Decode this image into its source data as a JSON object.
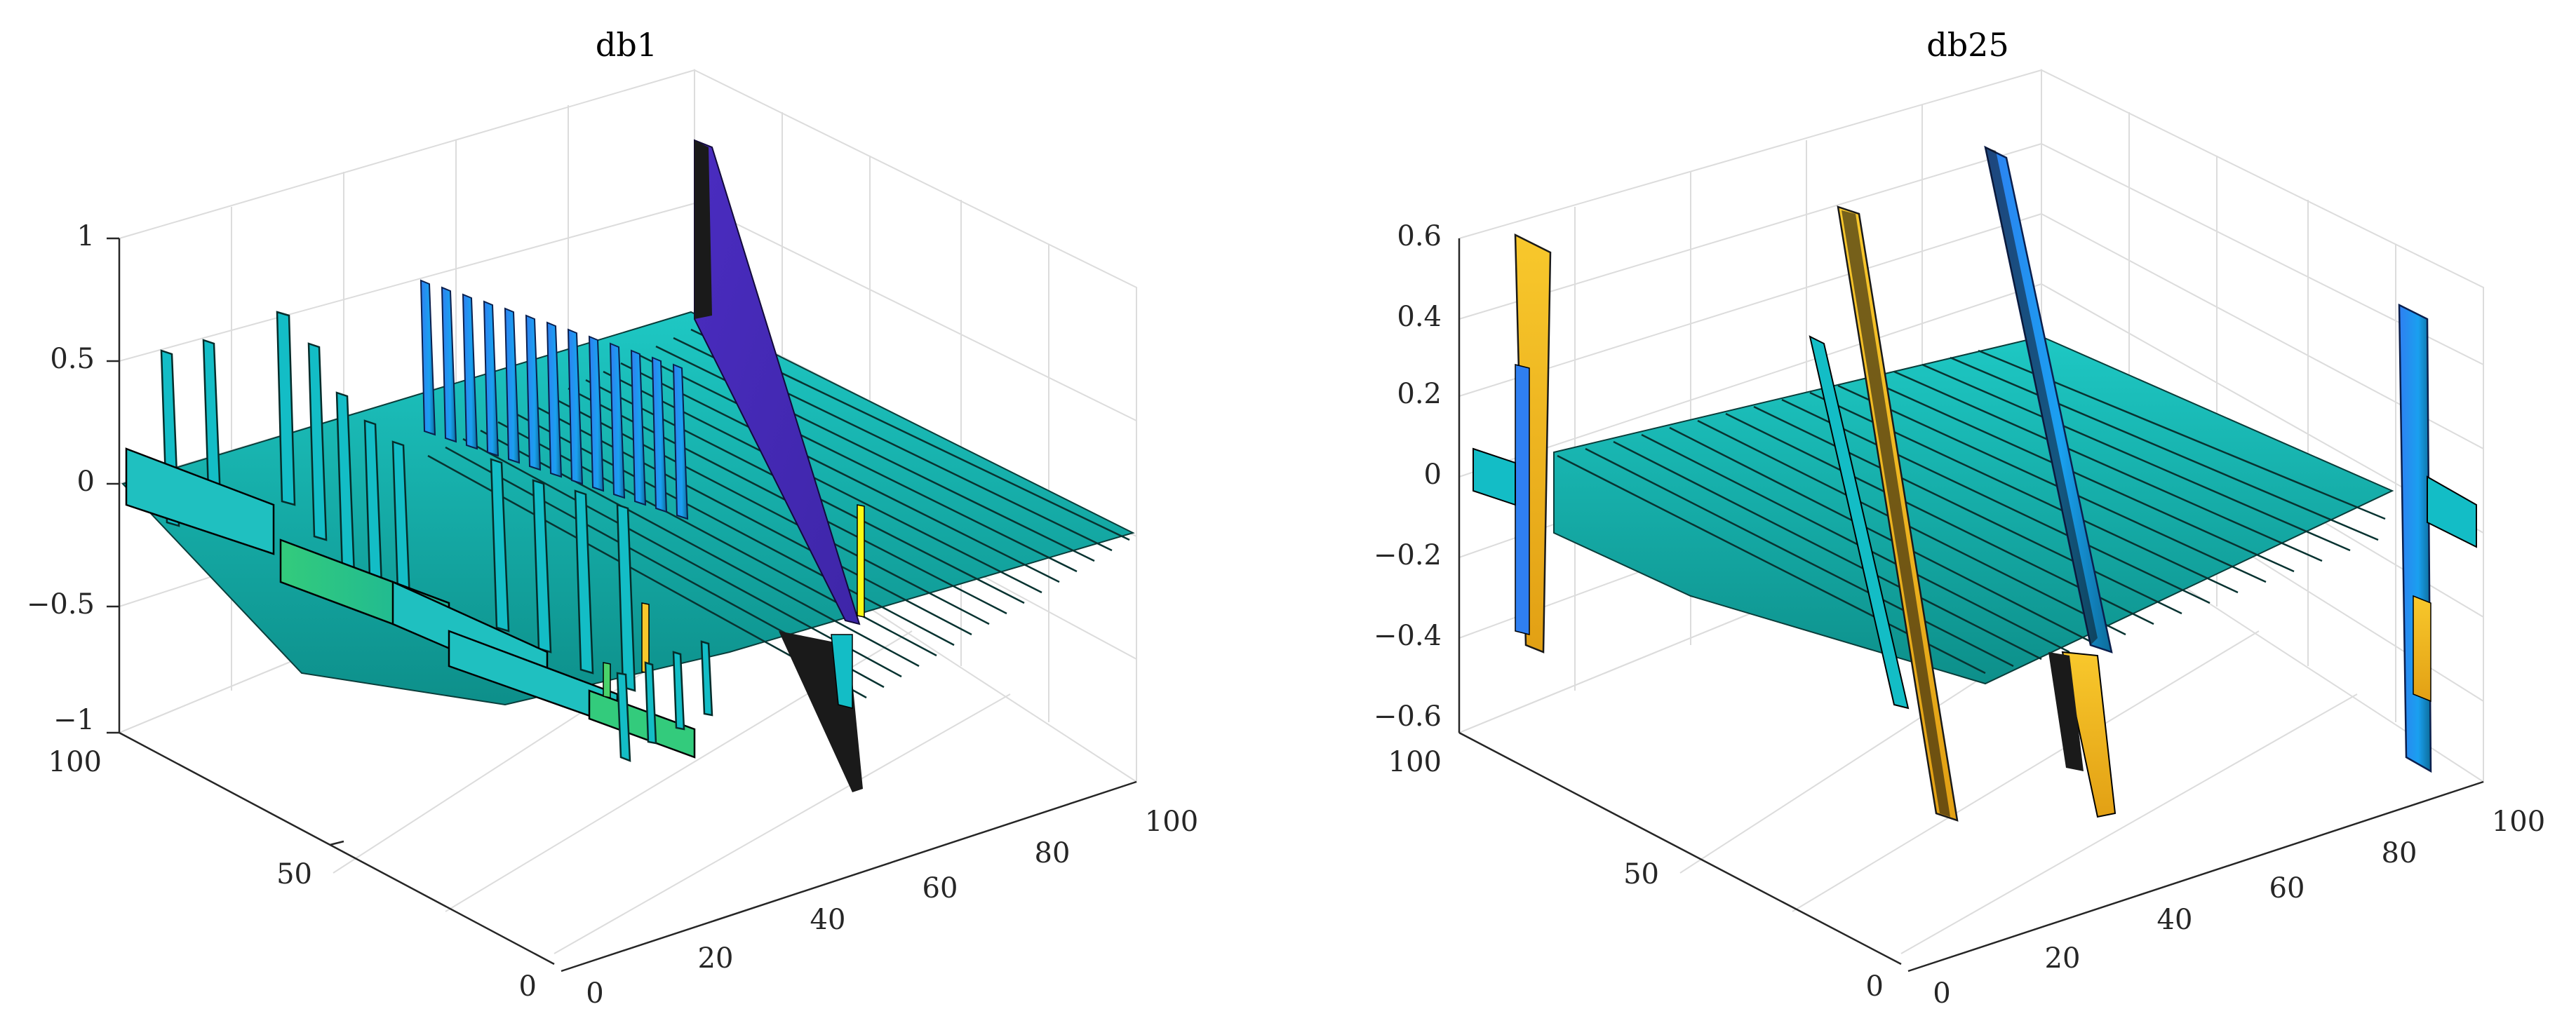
{
  "chart_data": [
    {
      "type": "surface3d",
      "title": "db1",
      "x_ticks": [
        "0",
        "20",
        "40",
        "60",
        "80",
        "100"
      ],
      "y_ticks": [
        "0",
        "50",
        "100"
      ],
      "z_ticks": [
        "−1",
        "−0.5",
        "0",
        "0.5",
        "1"
      ],
      "xlim": [
        0,
        100
      ],
      "ylim": [
        0,
        100
      ],
      "zlim": [
        -1,
        1
      ],
      "grid": true,
      "colormap": [
        "#3e26a8",
        "#2f7ff1",
        "#13bdc6",
        "#33cb7c",
        "#f8c82c",
        "#f9fb15"
      ],
      "ridges": [
        {
          "x": 5,
          "amp": 0.55
        },
        {
          "x": 9,
          "amp": 0.55
        },
        {
          "x": 15,
          "amp": 0.7
        },
        {
          "x": 20,
          "amp": 0.4
        },
        {
          "x": 24,
          "amp": 0.35
        },
        {
          "x": 27,
          "amp": 0.32
        },
        {
          "x": 31,
          "amp": 0.3
        },
        {
          "x": 35,
          "amp": 0.6
        },
        {
          "x": 39,
          "amp": 0.55
        },
        {
          "x": 43,
          "amp": 0.5
        },
        {
          "x": 47,
          "amp": 0.45
        },
        {
          "x": 54,
          "amp": 0.95
        }
      ]
    },
    {
      "type": "surface3d",
      "title": "db25",
      "x_ticks": [
        "0",
        "20",
        "40",
        "60",
        "80",
        "100"
      ],
      "y_ticks": [
        "0",
        "50",
        "100"
      ],
      "z_ticks": [
        "−0.6",
        "−0.4",
        "−0.2",
        "0",
        "0.2",
        "0.4",
        "0.6"
      ],
      "xlim": [
        0,
        100
      ],
      "ylim": [
        0,
        100
      ],
      "zlim": [
        -0.6,
        0.6
      ],
      "grid": true,
      "colormap": [
        "#3e26a8",
        "#2f7ff1",
        "#13bdc6",
        "#33cb7c",
        "#f8c82c",
        "#f9fb15"
      ],
      "ridges": [
        {
          "x": 4,
          "amp": 0.5
        },
        {
          "x": 30,
          "amp": 0.5
        },
        {
          "x": 33,
          "amp": 0.3
        },
        {
          "x": 48,
          "amp": 0.55
        },
        {
          "x": 92,
          "amp": 0.45
        }
      ]
    }
  ]
}
